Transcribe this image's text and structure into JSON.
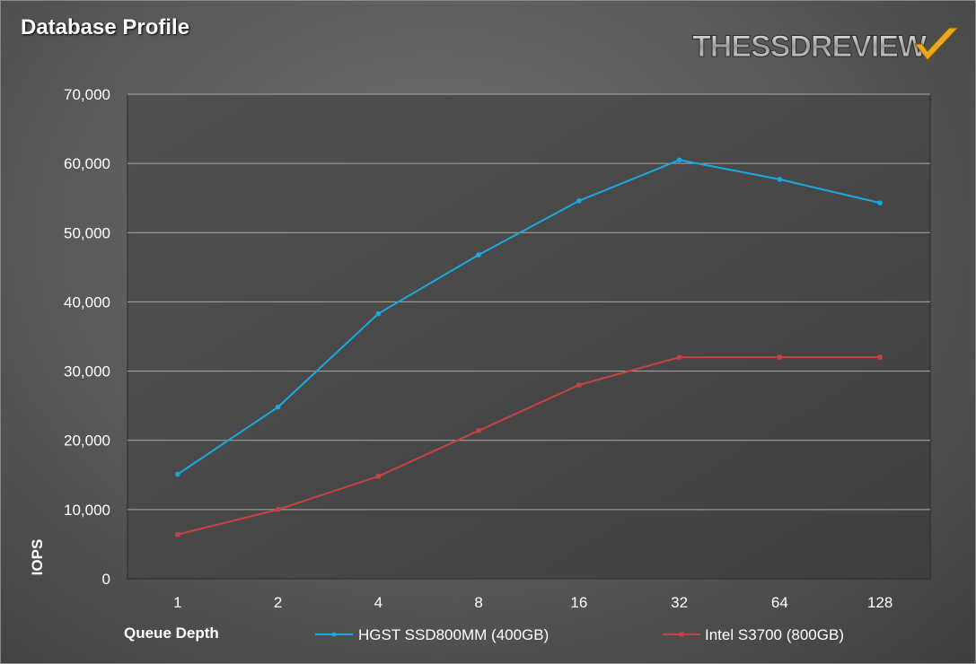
{
  "page": {
    "logo_text": "THESSDREVIEW"
  },
  "colors": {
    "series1": "#19a9e0",
    "series2": "#c94242",
    "grid": "#a9a9a9",
    "plot_bg": "#454545"
  },
  "chart_data": {
    "type": "line",
    "title": "Database Profile",
    "xlabel": "Queue Depth",
    "ylabel": "IOPS",
    "categories": [
      "1",
      "2",
      "4",
      "8",
      "16",
      "32",
      "64",
      "128"
    ],
    "ylim": [
      0,
      70000
    ],
    "yticks": [
      0,
      10000,
      20000,
      30000,
      40000,
      50000,
      60000,
      70000
    ],
    "ytick_labels": [
      "0",
      "10,000",
      "20,000",
      "30,000",
      "40,000",
      "50,000",
      "60,000",
      "70,000"
    ],
    "grid": true,
    "legend_position": "bottom",
    "series": [
      {
        "name": "HGST SSD800MM (400GB)",
        "marker": "circle",
        "values": [
          15100,
          24800,
          38300,
          46800,
          54600,
          60500,
          57700,
          54300
        ]
      },
      {
        "name": "Intel S3700 (800GB)",
        "marker": "square",
        "values": [
          6400,
          10000,
          14800,
          21400,
          28000,
          32000,
          32000,
          32000
        ]
      }
    ]
  }
}
